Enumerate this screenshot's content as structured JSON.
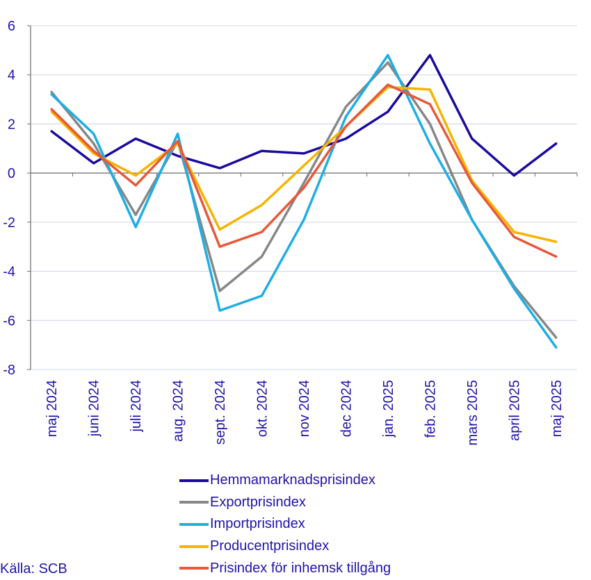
{
  "chart_data": {
    "type": "line",
    "title": "",
    "xlabel": "",
    "ylabel": "",
    "ylim": [
      -8,
      6
    ],
    "yticks": [
      6,
      4,
      2,
      0,
      -2,
      -4,
      -6,
      -8
    ],
    "categories": [
      "maj 2024",
      "juni 2024",
      "juli 2024",
      "aug. 2024",
      "sept. 2024",
      "okt. 2024",
      "nov 2024",
      "dec 2024",
      "jan. 2025",
      "feb. 2025",
      "mars 2025",
      "april 2025",
      "maj 2025"
    ],
    "series": [
      {
        "name": "Hemmamarknadsprisindex",
        "color": "#1a0a9e",
        "values": [
          1.7,
          0.4,
          1.4,
          0.7,
          0.2,
          0.9,
          0.8,
          1.4,
          2.5,
          4.8,
          1.4,
          -0.1,
          1.2
        ]
      },
      {
        "name": "Exportprisindex",
        "color": "#878787",
        "values": [
          3.3,
          1.2,
          -1.7,
          1.3,
          -4.8,
          -3.4,
          -0.4,
          2.7,
          4.5,
          2.0,
          -1.9,
          -4.6,
          -6.7
        ]
      },
      {
        "name": "Importprisindex",
        "color": "#1eaee4",
        "values": [
          3.2,
          1.6,
          -2.2,
          1.6,
          -5.6,
          -5.0,
          -1.9,
          2.3,
          4.8,
          1.2,
          -1.9,
          -4.7,
          -7.1
        ]
      },
      {
        "name": "Producentprisindex",
        "color": "#f5b400",
        "values": [
          2.5,
          0.8,
          -0.1,
          1.2,
          -2.3,
          -1.3,
          0.3,
          1.9,
          3.5,
          3.4,
          -0.3,
          -2.4,
          -2.8
        ]
      },
      {
        "name": "Prisindex för inhemsk tillgång",
        "color": "#e8583a",
        "values": [
          2.6,
          0.9,
          -0.5,
          1.3,
          -3.0,
          -2.4,
          -0.6,
          1.9,
          3.6,
          2.8,
          -0.4,
          -2.6,
          -3.4
        ]
      }
    ],
    "legend_position": "bottom",
    "grid": true
  },
  "source": "Källa: SCB"
}
